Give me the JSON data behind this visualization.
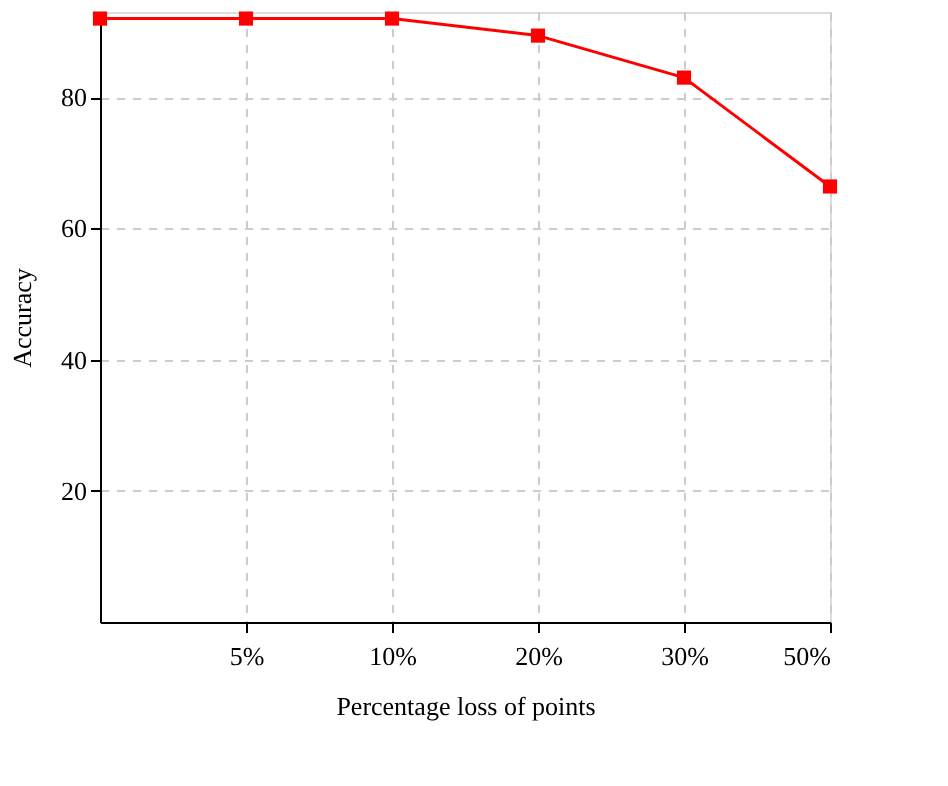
{
  "chart_data": {
    "type": "line",
    "xlabel": "Percentage loss of points",
    "ylabel": "Accuracy",
    "categories": [
      null,
      "5%",
      "10%",
      "20%",
      "30%",
      "50%"
    ],
    "series": [
      {
        "color": "#ff0000",
        "values": [
          92,
          92,
          92,
          89.4,
          83,
          66.4
        ]
      }
    ],
    "ylim": [
      0,
      93
    ],
    "yticks": [
      20,
      40,
      60,
      80
    ],
    "grid": true,
    "marker": "square",
    "line_style": "solid"
  }
}
